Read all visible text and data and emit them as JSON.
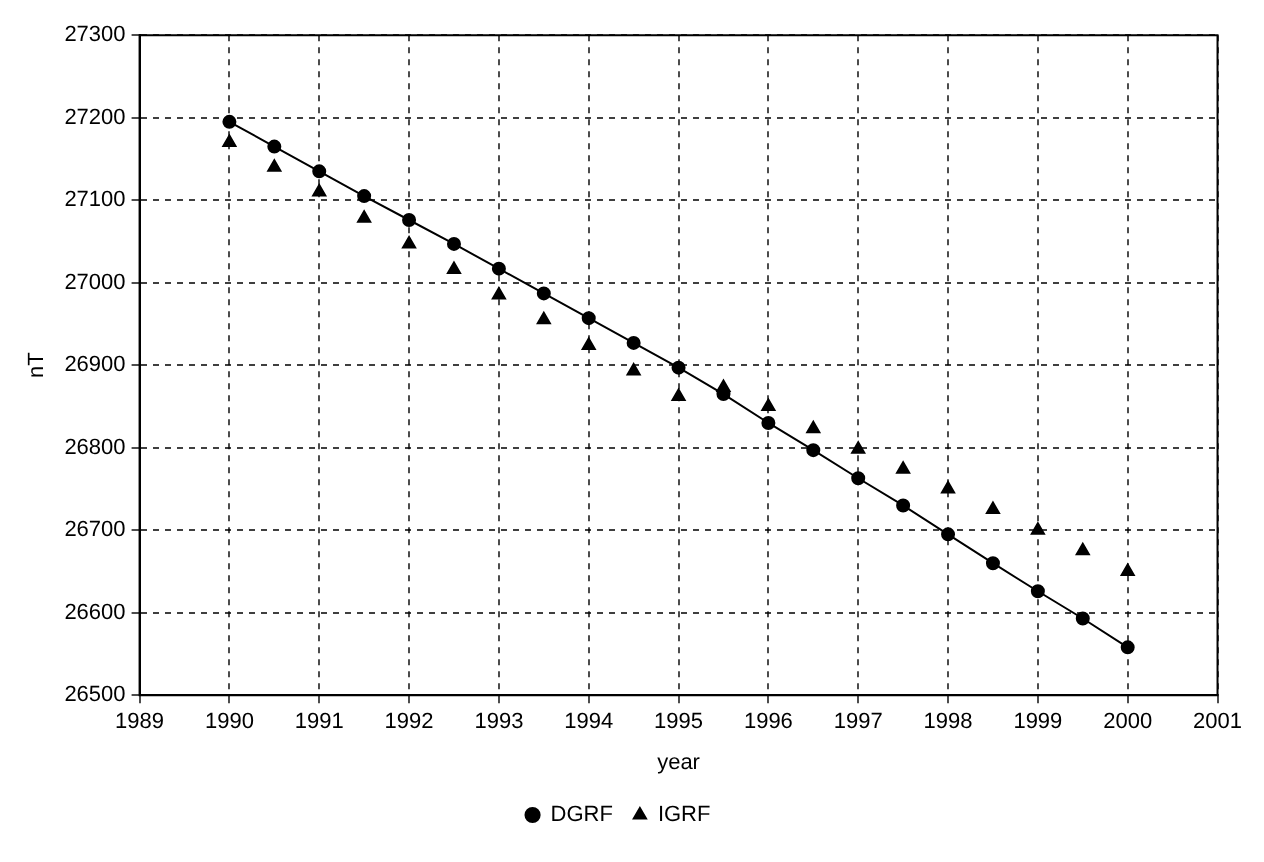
{
  "chart_data": {
    "type": "line",
    "xlabel": "year",
    "ylabel": "nT",
    "x": [
      1990,
      1990.5,
      1991,
      1991.5,
      1992,
      1992.5,
      1993,
      1993.5,
      1994,
      1994.5,
      1995,
      1995.5,
      1996,
      1996.5,
      1997,
      1997.5,
      1998,
      1998.5,
      1999,
      1999.5,
      2000
    ],
    "series": [
      {
        "name": "DGRF",
        "type": "line",
        "marker": "circle",
        "color": "#000000",
        "values": [
          27195,
          27165,
          27135,
          27105,
          27076,
          27047,
          27017,
          26987,
          26957,
          26927,
          26897,
          26865,
          26830,
          26797,
          26763,
          26730,
          26695,
          26660,
          26626,
          26593,
          26558
        ]
      },
      {
        "name": "IGRF",
        "type": "scatter",
        "marker": "triangle",
        "color": "#000000",
        "values": [
          27170,
          27140,
          27110,
          27078,
          27047,
          27016,
          26985,
          26955,
          26924,
          26893,
          26862,
          26873,
          26850,
          26823,
          26798,
          26774,
          26750,
          26725,
          26700,
          26675,
          26650
        ]
      }
    ],
    "xlim": [
      1989,
      2001
    ],
    "xticks": [
      1989,
      1990,
      1991,
      1992,
      1993,
      1994,
      1995,
      1996,
      1997,
      1998,
      1999,
      2000,
      2001
    ],
    "ylim": [
      26500,
      27300
    ],
    "yticks": [
      26500,
      26600,
      26700,
      26800,
      26900,
      27000,
      27100,
      27200,
      27300
    ],
    "grid": true,
    "legend": "bottom"
  }
}
